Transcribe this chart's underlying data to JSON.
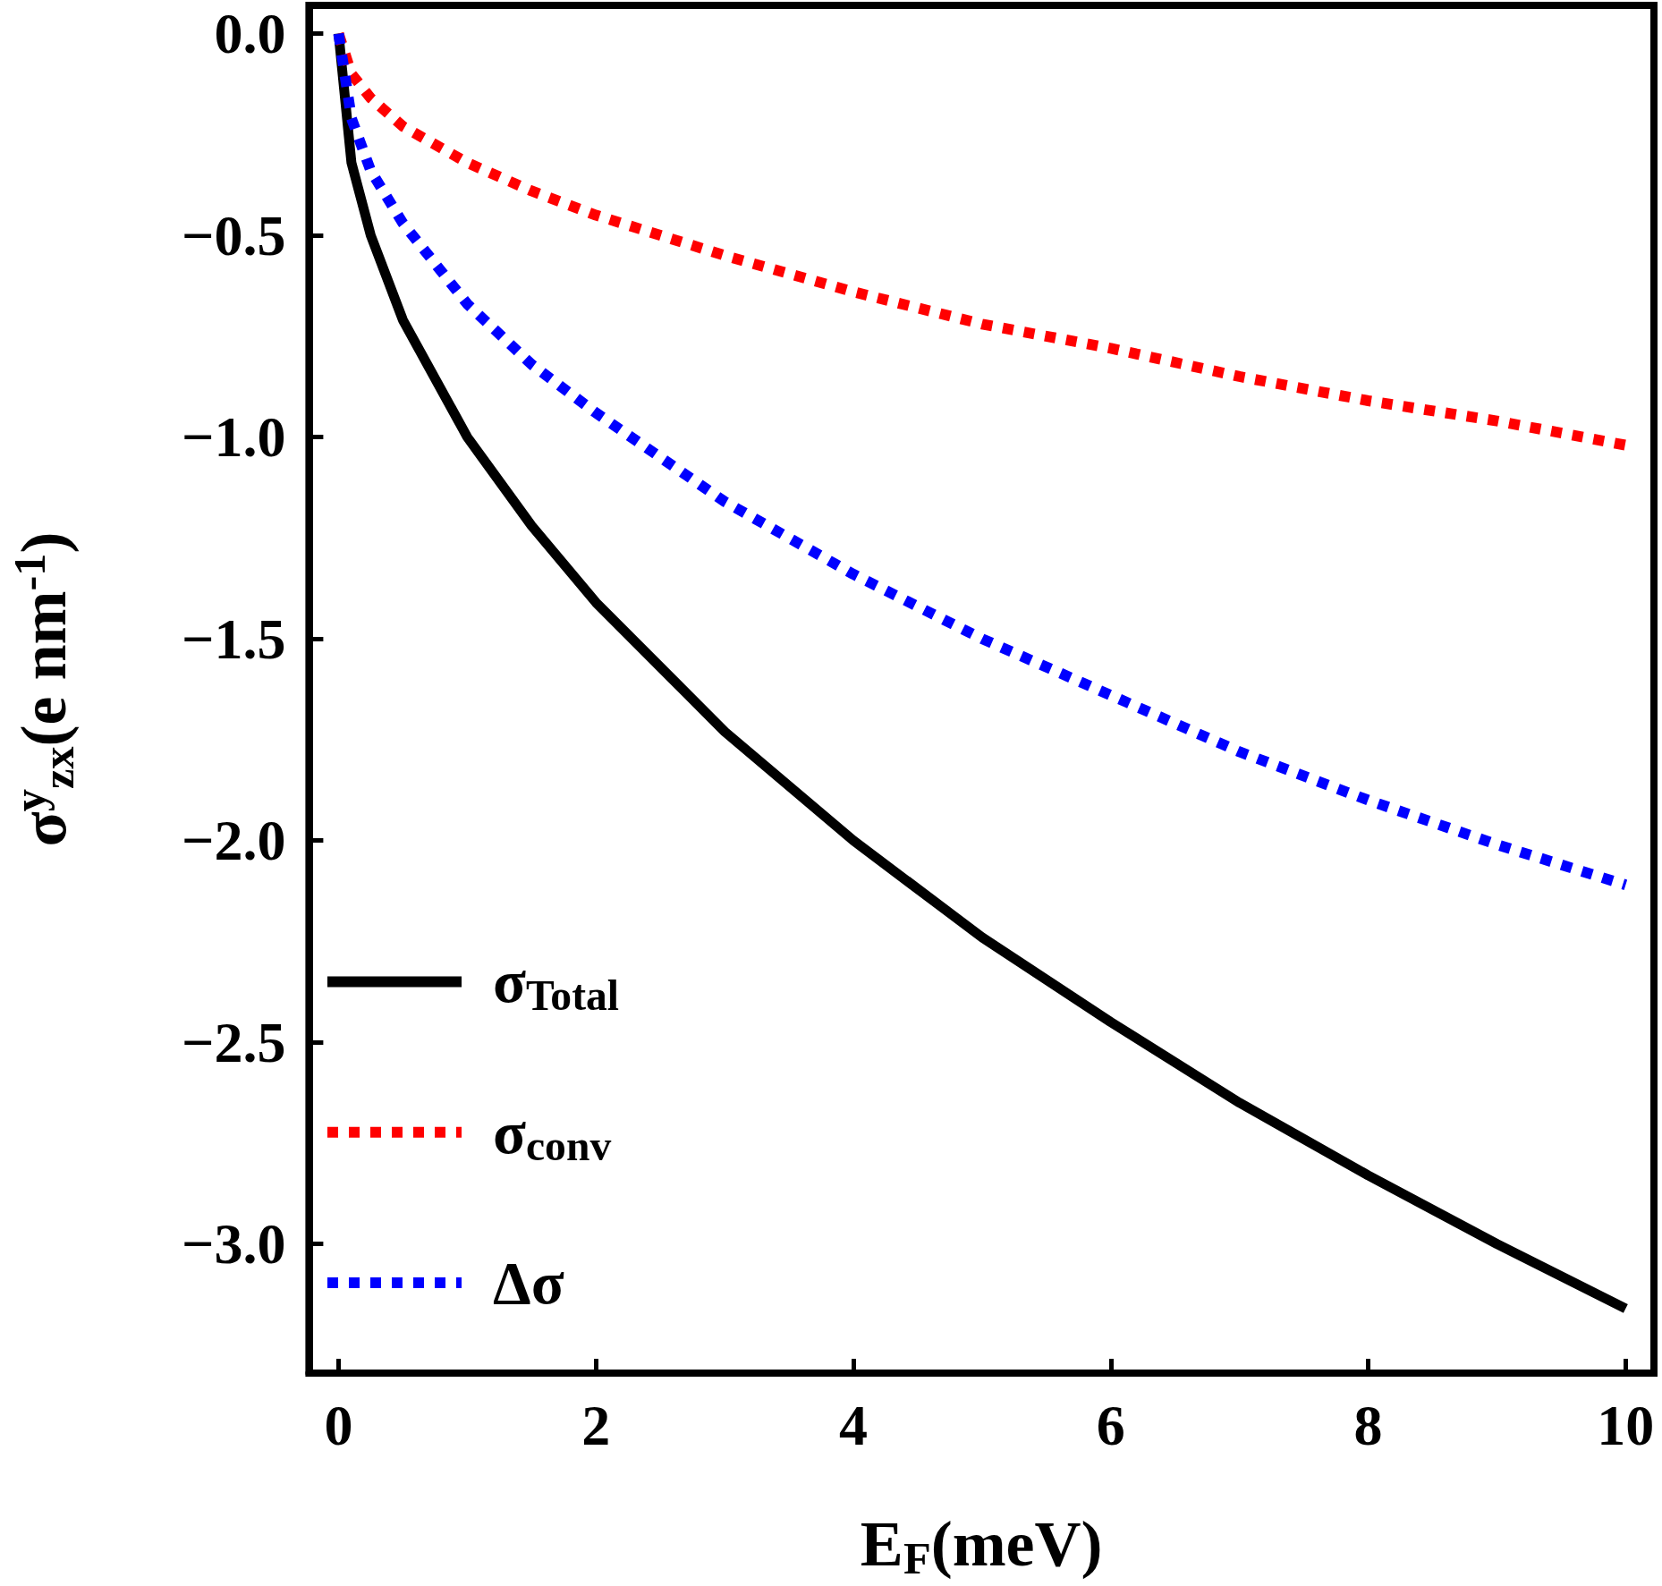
{
  "chart_data": {
    "type": "line",
    "xlabel": "E$_{F}$(meV)",
    "ylabel": "σ$^{y}$$_{zx}$(e nm$^{-1}$)",
    "x": [
      0,
      0.1,
      0.25,
      0.5,
      1,
      1.5,
      2,
      3,
      4,
      5,
      6,
      7,
      8,
      9,
      10
    ],
    "series": [
      {
        "name": "σ$_{Total}$",
        "color": "#000000",
        "line_style": "solid",
        "values": [
          0,
          -0.32,
          -0.5,
          -0.71,
          -1.0,
          -1.22,
          -1.41,
          -1.73,
          -2.0,
          -2.24,
          -2.45,
          -2.65,
          -2.83,
          -3.0,
          -3.16
        ]
      },
      {
        "name": "σ$_{conv}$",
        "color": "#ff0000",
        "line_style": "dotted",
        "values": [
          0,
          -0.1,
          -0.16,
          -0.23,
          -0.32,
          -0.39,
          -0.45,
          -0.55,
          -0.64,
          -0.72,
          -0.78,
          -0.85,
          -0.91,
          -0.96,
          -1.02
        ]
      },
      {
        "name": "Δσ",
        "color": "#0000ff",
        "line_style": "dotted",
        "values": [
          0,
          -0.21,
          -0.34,
          -0.47,
          -0.67,
          -0.82,
          -0.94,
          -1.16,
          -1.34,
          -1.5,
          -1.64,
          -1.78,
          -1.9,
          -2.01,
          -2.11
        ]
      }
    ],
    "xlim": [
      -0.23,
      10.22
    ],
    "ylim": [
      -3.32,
      0.07
    ],
    "xticks": [
      0,
      2,
      4,
      6,
      8,
      10
    ],
    "yticks": [
      {
        "value": 0,
        "label": "0.0"
      },
      {
        "value": -0.5,
        "label": "−0.5"
      },
      {
        "value": -1,
        "label": "−1.0"
      },
      {
        "value": -1.5,
        "label": "−1.5"
      },
      {
        "value": -2,
        "label": "−2.0"
      },
      {
        "value": -2.5,
        "label": "−2.5"
      },
      {
        "value": -3,
        "label": "−3.0"
      }
    ],
    "legend": "bottom left",
    "grid": false,
    "marker": "none"
  }
}
